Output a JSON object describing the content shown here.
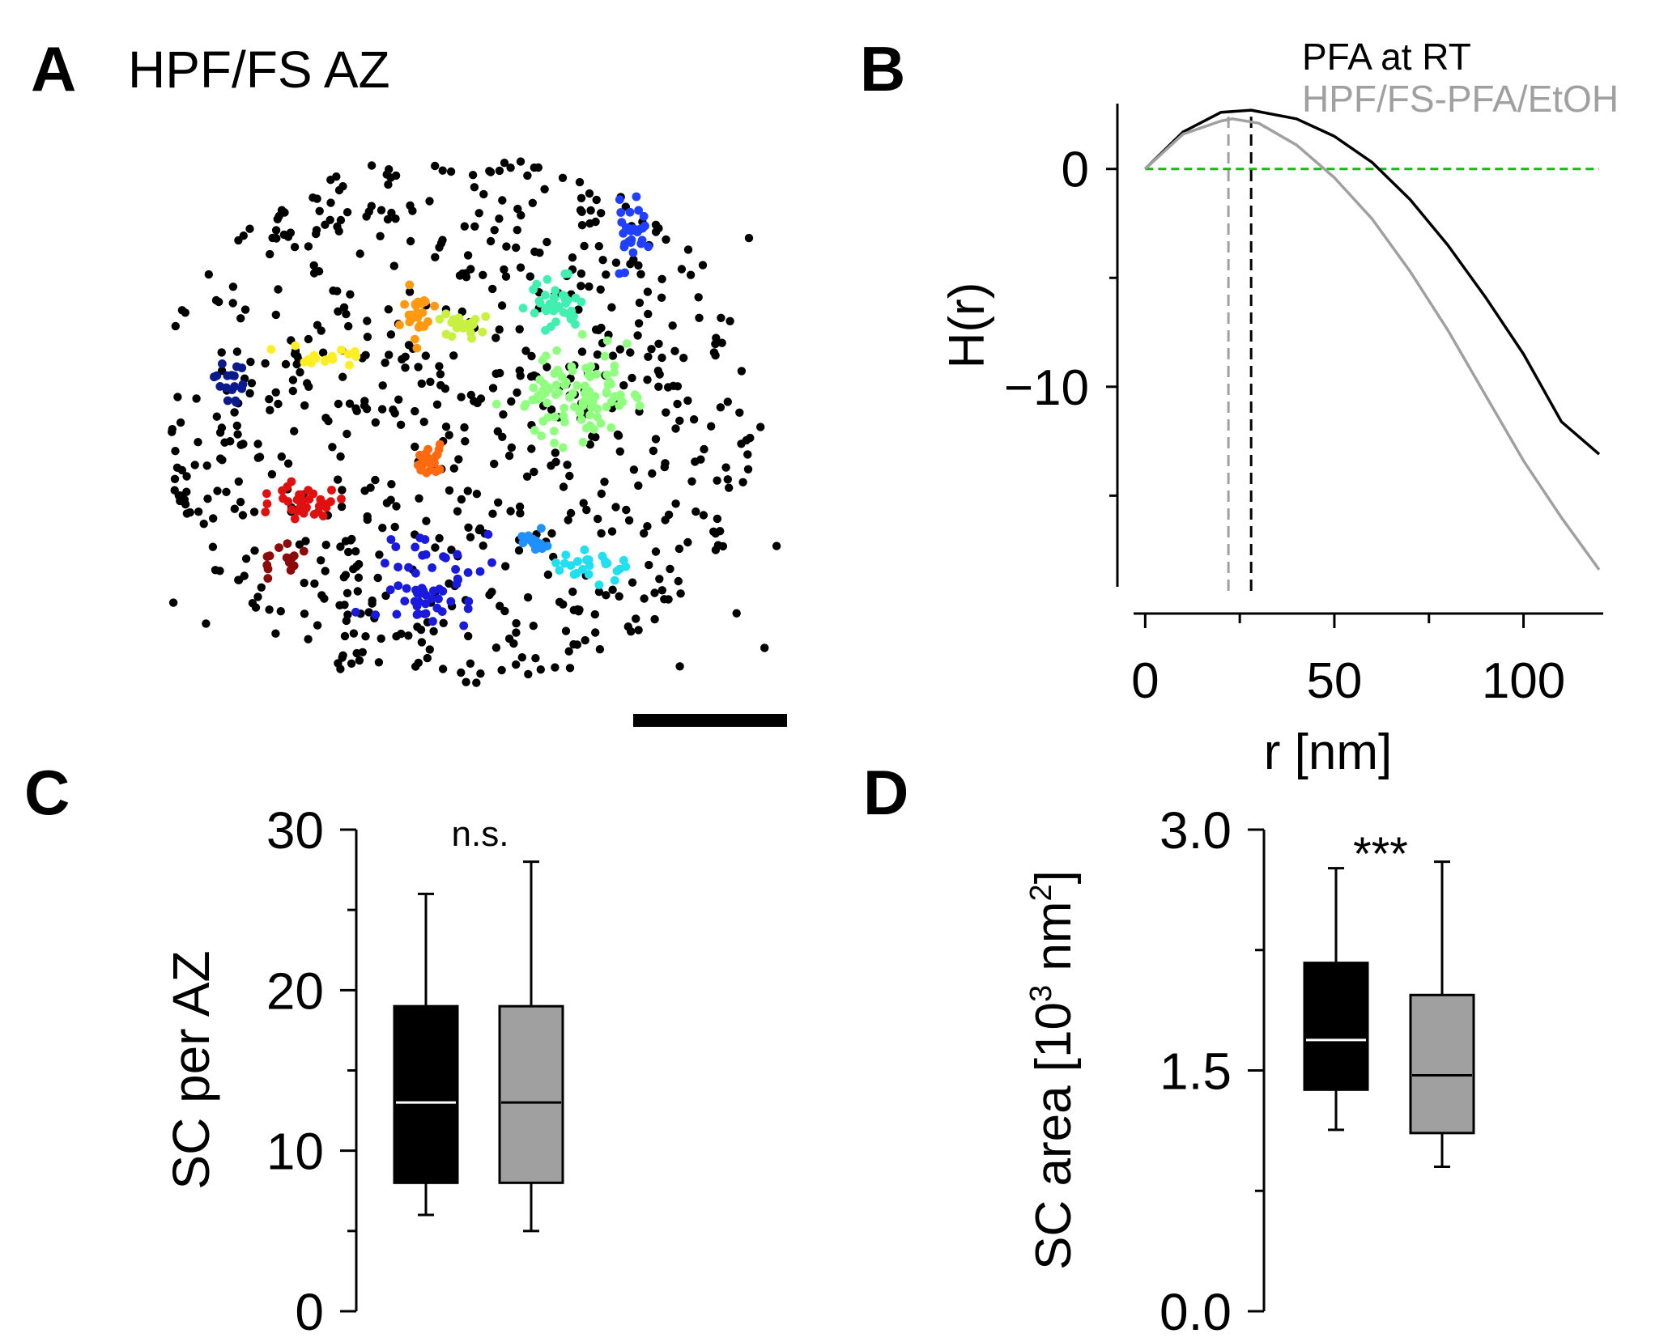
{
  "panels": {
    "A": {
      "letter": "A",
      "title": "HPF/FS AZ"
    },
    "B": {
      "letter": "B"
    },
    "C": {
      "letter": "C"
    },
    "D": {
      "letter": "D"
    }
  },
  "chart_data": [
    {
      "panel": "A",
      "type": "scatter",
      "title": "HPF/FS AZ",
      "description_free": true,
      "background_color": "#000000",
      "clusters": [
        {
          "color": "#0a1a8c",
          "n": 18
        },
        {
          "color": "#ffee22",
          "n": 16
        },
        {
          "color": "#ff9a10",
          "n": 24
        },
        {
          "color": "#c8f040",
          "n": 20
        },
        {
          "color": "#40f0b0",
          "n": 38
        },
        {
          "color": "#2040ff",
          "n": 28
        },
        {
          "color": "#90ff80",
          "n": 95
        },
        {
          "color": "#ff6a10",
          "n": 22
        },
        {
          "color": "#e01010",
          "n": 34
        },
        {
          "color": "#8b0a0a",
          "n": 14
        },
        {
          "color": "#1a1adc",
          "n": 55
        },
        {
          "color": "#2090ff",
          "n": 14
        },
        {
          "color": "#20e0f0",
          "n": 26
        }
      ],
      "background_points": 700,
      "scale_bar": true
    },
    {
      "panel": "B",
      "type": "line",
      "xlabel": "r [nm]",
      "ylabel": "H(r)",
      "xlim": [
        -2,
        120
      ],
      "ylim": [
        -19,
        3
      ],
      "xticks": [
        0,
        50,
        100
      ],
      "yticks": [
        0,
        -10
      ],
      "series": [
        {
          "name": "PFA at RT",
          "color": "#000000",
          "x": [
            0,
            10,
            20,
            28,
            40,
            50,
            60,
            70,
            80,
            90,
            100,
            110,
            120
          ],
          "y": [
            0,
            1.7,
            2.6,
            2.7,
            2.3,
            1.5,
            0.3,
            -1.4,
            -3.5,
            -5.9,
            -8.5,
            -11.6,
            -13.1
          ]
        },
        {
          "name": "HPF/FS-PFA/EtOH",
          "color": "#a0a0a0",
          "x": [
            0,
            10,
            20,
            23,
            30,
            40,
            50,
            60,
            70,
            80,
            90,
            100,
            110,
            120
          ],
          "y": [
            0,
            1.6,
            2.2,
            2.3,
            2.1,
            1.1,
            -0.4,
            -2.3,
            -4.7,
            -7.4,
            -10.4,
            -13.4,
            -16.0,
            -18.4
          ]
        }
      ],
      "reference_line": {
        "y": 0,
        "color": "#1db31d",
        "style": "dashed"
      },
      "markers": [
        {
          "x": 22,
          "color": "#a0a0a0",
          "style": "dashed"
        },
        {
          "x": 28,
          "color": "#000000",
          "style": "dashed"
        }
      ],
      "legend": "top-right"
    },
    {
      "panel": "C",
      "type": "box",
      "ylabel": "SC per AZ",
      "ylim": [
        0,
        30
      ],
      "yticks": [
        0,
        10,
        20,
        30
      ],
      "yticklabels": [
        "0",
        "10",
        "20",
        "30"
      ],
      "annotation": "n.s.",
      "boxes": [
        {
          "fill": "#000000",
          "median_color": "#ffffff",
          "whisker_low": 6,
          "q1": 8,
          "median": 13,
          "q3": 19,
          "whisker_high": 26
        },
        {
          "fill": "#a0a0a0",
          "median_color": "#000000",
          "whisker_low": 5,
          "q1": 8,
          "median": 13,
          "q3": 19,
          "whisker_high": 28
        }
      ]
    },
    {
      "panel": "D",
      "type": "box",
      "ylabel_main": "SC area [10",
      "ylabel_sup1": "3",
      "ylabel_mid": " nm",
      "ylabel_sup2": "2",
      "ylabel_end": "]",
      "ylim": [
        0,
        3.0
      ],
      "yticks": [
        0,
        1.5,
        3.0
      ],
      "yticklabels": [
        "0.0",
        "1.5",
        "3.0"
      ],
      "annotation": "***",
      "boxes": [
        {
          "fill": "#000000",
          "median_color": "#ffffff",
          "whisker_low": 1.13,
          "q1": 1.38,
          "median": 1.69,
          "q3": 2.17,
          "whisker_high": 2.76
        },
        {
          "fill": "#a0a0a0",
          "median_color": "#000000",
          "whisker_low": 0.9,
          "q1": 1.11,
          "median": 1.47,
          "q3": 1.97,
          "whisker_high": 2.8
        }
      ]
    }
  ]
}
